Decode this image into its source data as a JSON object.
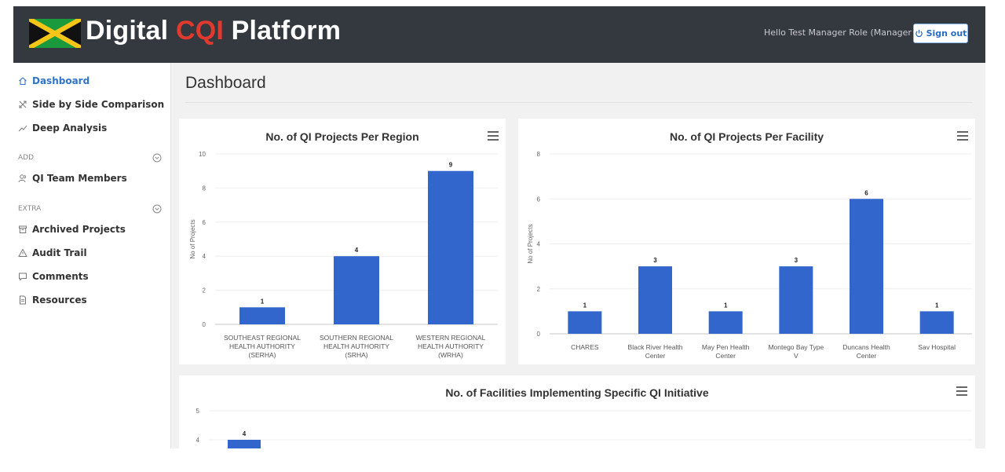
{
  "header": {
    "brand_prefix": "Digital",
    "brand_accent": "CQI",
    "brand_suffix": "Platform",
    "greeting": "Hello Test Manager Role (Manager )",
    "signout_label": "Sign out"
  },
  "sidebar": {
    "main_items": [
      {
        "label": "Dashboard",
        "icon": "home-icon",
        "active": true
      },
      {
        "label": "Side by Side Comparison",
        "icon": "compare-icon",
        "active": false
      },
      {
        "label": "Deep Analysis",
        "icon": "trend-icon",
        "active": false
      }
    ],
    "add_section": {
      "label": "ADD",
      "toggle_icon": "expand-circle-icon"
    },
    "add_items": [
      {
        "label": "QI Team Members",
        "icon": "users-icon"
      }
    ],
    "extra_section": {
      "label": "EXTRA",
      "toggle_icon": "collapse-circle-icon"
    },
    "extra_items": [
      {
        "label": "Archived Projects",
        "icon": "archive-icon"
      },
      {
        "label": "Audit Trail",
        "icon": "warning-icon"
      },
      {
        "label": "Comments",
        "icon": "comment-icon"
      },
      {
        "label": "Resources",
        "icon": "document-icon"
      }
    ]
  },
  "main": {
    "page_title": "Dashboard"
  },
  "colors": {
    "header_bg": "#34383f",
    "brand_accent": "#e03a2f",
    "bar": "#3366cc",
    "active_nav": "#2f74c9"
  },
  "chart_data": [
    {
      "type": "bar",
      "title": "No. of QI Projects Per Region",
      "ylabel": "No of Projects",
      "xlabel": "",
      "ylim": [
        0,
        10
      ],
      "yticks": [
        0,
        2,
        4,
        6,
        8,
        10
      ],
      "categories": [
        [
          "SOUTHEAST REGIONAL",
          "HEALTH AUTHORITY",
          "(SERHA)"
        ],
        [
          "SOUTHERN REGIONAL",
          "HEALTH AUTHORITY",
          "(SRHA)"
        ],
        [
          "WESTERN REGIONAL",
          "HEALTH AUTHORITY",
          "(WRHA)"
        ]
      ],
      "values": [
        1,
        4,
        9
      ],
      "grid": true,
      "legend": "none"
    },
    {
      "type": "bar",
      "title": "No. of QI Projects Per Facility",
      "ylabel": "No of Projects",
      "xlabel": "",
      "ylim": [
        0,
        8
      ],
      "yticks": [
        0,
        2,
        4,
        6,
        8
      ],
      "categories": [
        [
          "CHARES"
        ],
        [
          "Black River Health",
          "Center"
        ],
        [
          "May Pen Health",
          "Center"
        ],
        [
          "Montego Bay Type",
          "V"
        ],
        [
          "Duncans Health",
          "Center"
        ],
        [
          "Sav Hospital"
        ]
      ],
      "values": [
        1,
        3,
        1,
        3,
        6,
        1
      ],
      "grid": true,
      "legend": "none"
    },
    {
      "type": "bar",
      "title": "No. of Facilities Implementing Specific QI Initiative",
      "ylabel": "",
      "xlabel": "",
      "ylim": [
        0,
        5
      ],
      "yticks": [
        4,
        5
      ],
      "categories": [
        ""
      ],
      "values": [
        4
      ],
      "grid": true,
      "legend": "none"
    }
  ]
}
